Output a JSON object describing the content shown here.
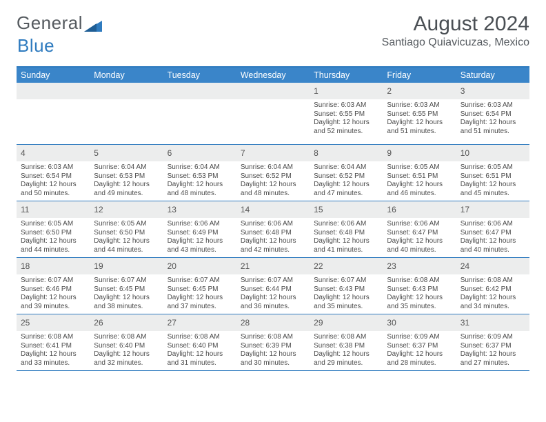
{
  "brand": {
    "word1": "General",
    "word2": "Blue"
  },
  "title": "August 2024",
  "location": "Santiago Quiavicuzas, Mexico",
  "colors": {
    "header_bg": "#3a85c9",
    "header_text": "#ffffff",
    "border": "#2f7bbf",
    "daynum_bg": "#eceded",
    "text": "#4a4a4a",
    "title_text": "#4a4f54"
  },
  "day_names": [
    "Sunday",
    "Monday",
    "Tuesday",
    "Wednesday",
    "Thursday",
    "Friday",
    "Saturday"
  ],
  "weeks": [
    [
      null,
      null,
      null,
      null,
      {
        "n": "1",
        "sr": "6:03 AM",
        "ss": "6:55 PM",
        "dl": "12 hours and 52 minutes."
      },
      {
        "n": "2",
        "sr": "6:03 AM",
        "ss": "6:55 PM",
        "dl": "12 hours and 51 minutes."
      },
      {
        "n": "3",
        "sr": "6:03 AM",
        "ss": "6:54 PM",
        "dl": "12 hours and 51 minutes."
      }
    ],
    [
      {
        "n": "4",
        "sr": "6:03 AM",
        "ss": "6:54 PM",
        "dl": "12 hours and 50 minutes."
      },
      {
        "n": "5",
        "sr": "6:04 AM",
        "ss": "6:53 PM",
        "dl": "12 hours and 49 minutes."
      },
      {
        "n": "6",
        "sr": "6:04 AM",
        "ss": "6:53 PM",
        "dl": "12 hours and 48 minutes."
      },
      {
        "n": "7",
        "sr": "6:04 AM",
        "ss": "6:52 PM",
        "dl": "12 hours and 48 minutes."
      },
      {
        "n": "8",
        "sr": "6:04 AM",
        "ss": "6:52 PM",
        "dl": "12 hours and 47 minutes."
      },
      {
        "n": "9",
        "sr": "6:05 AM",
        "ss": "6:51 PM",
        "dl": "12 hours and 46 minutes."
      },
      {
        "n": "10",
        "sr": "6:05 AM",
        "ss": "6:51 PM",
        "dl": "12 hours and 45 minutes."
      }
    ],
    [
      {
        "n": "11",
        "sr": "6:05 AM",
        "ss": "6:50 PM",
        "dl": "12 hours and 44 minutes."
      },
      {
        "n": "12",
        "sr": "6:05 AM",
        "ss": "6:50 PM",
        "dl": "12 hours and 44 minutes."
      },
      {
        "n": "13",
        "sr": "6:06 AM",
        "ss": "6:49 PM",
        "dl": "12 hours and 43 minutes."
      },
      {
        "n": "14",
        "sr": "6:06 AM",
        "ss": "6:48 PM",
        "dl": "12 hours and 42 minutes."
      },
      {
        "n": "15",
        "sr": "6:06 AM",
        "ss": "6:48 PM",
        "dl": "12 hours and 41 minutes."
      },
      {
        "n": "16",
        "sr": "6:06 AM",
        "ss": "6:47 PM",
        "dl": "12 hours and 40 minutes."
      },
      {
        "n": "17",
        "sr": "6:06 AM",
        "ss": "6:47 PM",
        "dl": "12 hours and 40 minutes."
      }
    ],
    [
      {
        "n": "18",
        "sr": "6:07 AM",
        "ss": "6:46 PM",
        "dl": "12 hours and 39 minutes."
      },
      {
        "n": "19",
        "sr": "6:07 AM",
        "ss": "6:45 PM",
        "dl": "12 hours and 38 minutes."
      },
      {
        "n": "20",
        "sr": "6:07 AM",
        "ss": "6:45 PM",
        "dl": "12 hours and 37 minutes."
      },
      {
        "n": "21",
        "sr": "6:07 AM",
        "ss": "6:44 PM",
        "dl": "12 hours and 36 minutes."
      },
      {
        "n": "22",
        "sr": "6:07 AM",
        "ss": "6:43 PM",
        "dl": "12 hours and 35 minutes."
      },
      {
        "n": "23",
        "sr": "6:08 AM",
        "ss": "6:43 PM",
        "dl": "12 hours and 35 minutes."
      },
      {
        "n": "24",
        "sr": "6:08 AM",
        "ss": "6:42 PM",
        "dl": "12 hours and 34 minutes."
      }
    ],
    [
      {
        "n": "25",
        "sr": "6:08 AM",
        "ss": "6:41 PM",
        "dl": "12 hours and 33 minutes."
      },
      {
        "n": "26",
        "sr": "6:08 AM",
        "ss": "6:40 PM",
        "dl": "12 hours and 32 minutes."
      },
      {
        "n": "27",
        "sr": "6:08 AM",
        "ss": "6:40 PM",
        "dl": "12 hours and 31 minutes."
      },
      {
        "n": "28",
        "sr": "6:08 AM",
        "ss": "6:39 PM",
        "dl": "12 hours and 30 minutes."
      },
      {
        "n": "29",
        "sr": "6:08 AM",
        "ss": "6:38 PM",
        "dl": "12 hours and 29 minutes."
      },
      {
        "n": "30",
        "sr": "6:09 AM",
        "ss": "6:37 PM",
        "dl": "12 hours and 28 minutes."
      },
      {
        "n": "31",
        "sr": "6:09 AM",
        "ss": "6:37 PM",
        "dl": "12 hours and 27 minutes."
      }
    ]
  ],
  "labels": {
    "sunrise": "Sunrise:",
    "sunset": "Sunset:",
    "daylight": "Daylight:"
  }
}
